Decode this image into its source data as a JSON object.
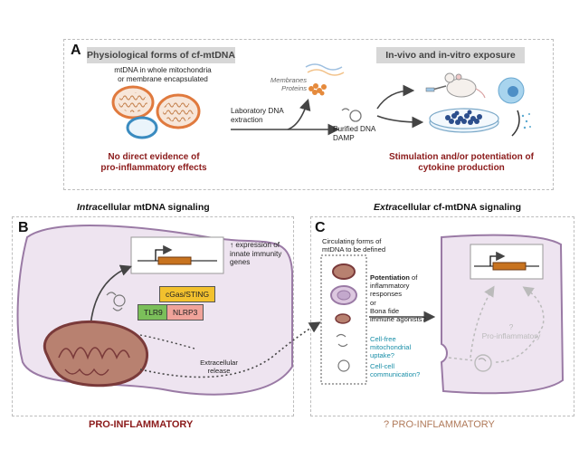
{
  "panel_a": {
    "letter": "A",
    "left_header": "Physiological forms of cf-mtDNA",
    "right_header": "In-vivo and in-vitro exposure",
    "mito_caption": "mtDNA in whole mitochondria\nor membrane encapsulated",
    "membranes_proteins": "Membranes\nProteins",
    "lab_extraction": "Laboratory DNA\nextraction",
    "purified": "Purified DNA\nDAMP",
    "no_evidence": "No direct evidence of\npro-inflammatory effects",
    "stimulation": "Stimulation and/or potentiation of\ncytokine production"
  },
  "titles": {
    "intra_italic": "Intra",
    "intra_rest": "cellular mtDNA signaling",
    "extra_italic": "Extra",
    "extra_rest": "cellular cf-mtDNA signaling"
  },
  "panel_b": {
    "letter": "B",
    "expression": "↑ expression of\ninnate immunity\ngenes",
    "cgas": "cGas/STING",
    "tlr9": "TLR9",
    "nlrp3": "NLRP3",
    "extracellular_release": "Extracellular\nrelease",
    "footer": "PRO-INFLAMMATORY"
  },
  "panel_c": {
    "letter": "C",
    "circulating": "Circulating forms of\nmtDNA to be defined",
    "potentiation_bold": "Potentiation",
    "potentiation_rest": " of\ninflammatory\nresponses",
    "or": "or",
    "bona_fide": "Bona fide\nimmune agonists?",
    "cell_free": "Cell-free\nmitochondrial\nuptake?",
    "cell_cell": "Cell-cell\ncommunication?",
    "pro_inflam_q": "?\nPro-inflammatory",
    "footer": "? PRO-INFLAMMATORY"
  },
  "colors": {
    "dark_red": "#8b1a1a",
    "teal": "#1a8fa8",
    "cell_fill": "#eee4f0",
    "cell_stroke": "#9a7aa5",
    "orange": "#e07a3e",
    "cgas_bg": "#f2c12e",
    "tlr9_bg": "#7bbf5a",
    "nlrp3_bg": "#f0a39a",
    "footer_c": "#b07a5a"
  }
}
